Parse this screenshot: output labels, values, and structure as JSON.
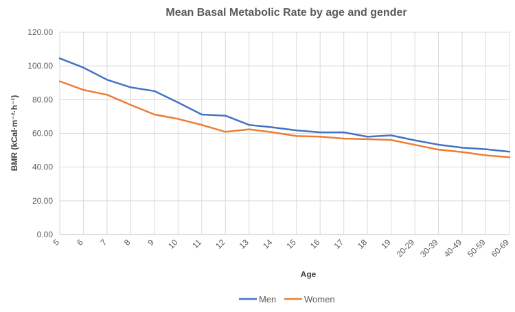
{
  "chart_data": {
    "type": "line",
    "title": "Mean Basal Metabolic Rate by age and gender",
    "xlabel": "Age",
    "ylabel": "BMR (kCal·m⁻²·h⁻¹)",
    "categories": [
      "5",
      "6",
      "7",
      "8",
      "9",
      "10",
      "11",
      "12",
      "13",
      "14",
      "15",
      "16",
      "17",
      "18",
      "19",
      "20-29",
      "30-39",
      "40-49",
      "50-59",
      "60-69"
    ],
    "ylim": [
      0,
      120
    ],
    "yticks": [
      "0.00",
      "20.00",
      "40.00",
      "60.00",
      "80.00",
      "100.00",
      "120.00"
    ],
    "grid": true,
    "legend_position": "bottom",
    "series": [
      {
        "name": "Men",
        "color": "#4472c4",
        "values": [
          104.5,
          99.0,
          91.8,
          87.3,
          85.1,
          78.3,
          71.2,
          70.5,
          65.0,
          63.6,
          61.8,
          60.6,
          60.6,
          58.0,
          58.8,
          55.9,
          53.3,
          51.5,
          50.6,
          49.1
        ]
      },
      {
        "name": "Women",
        "color": "#ed7d31",
        "values": [
          90.9,
          85.8,
          82.9,
          76.9,
          71.2,
          68.6,
          65.0,
          60.9,
          62.4,
          60.6,
          58.4,
          58.1,
          56.9,
          56.6,
          56.1,
          53.2,
          50.3,
          48.9,
          47.0,
          45.8
        ]
      }
    ]
  }
}
